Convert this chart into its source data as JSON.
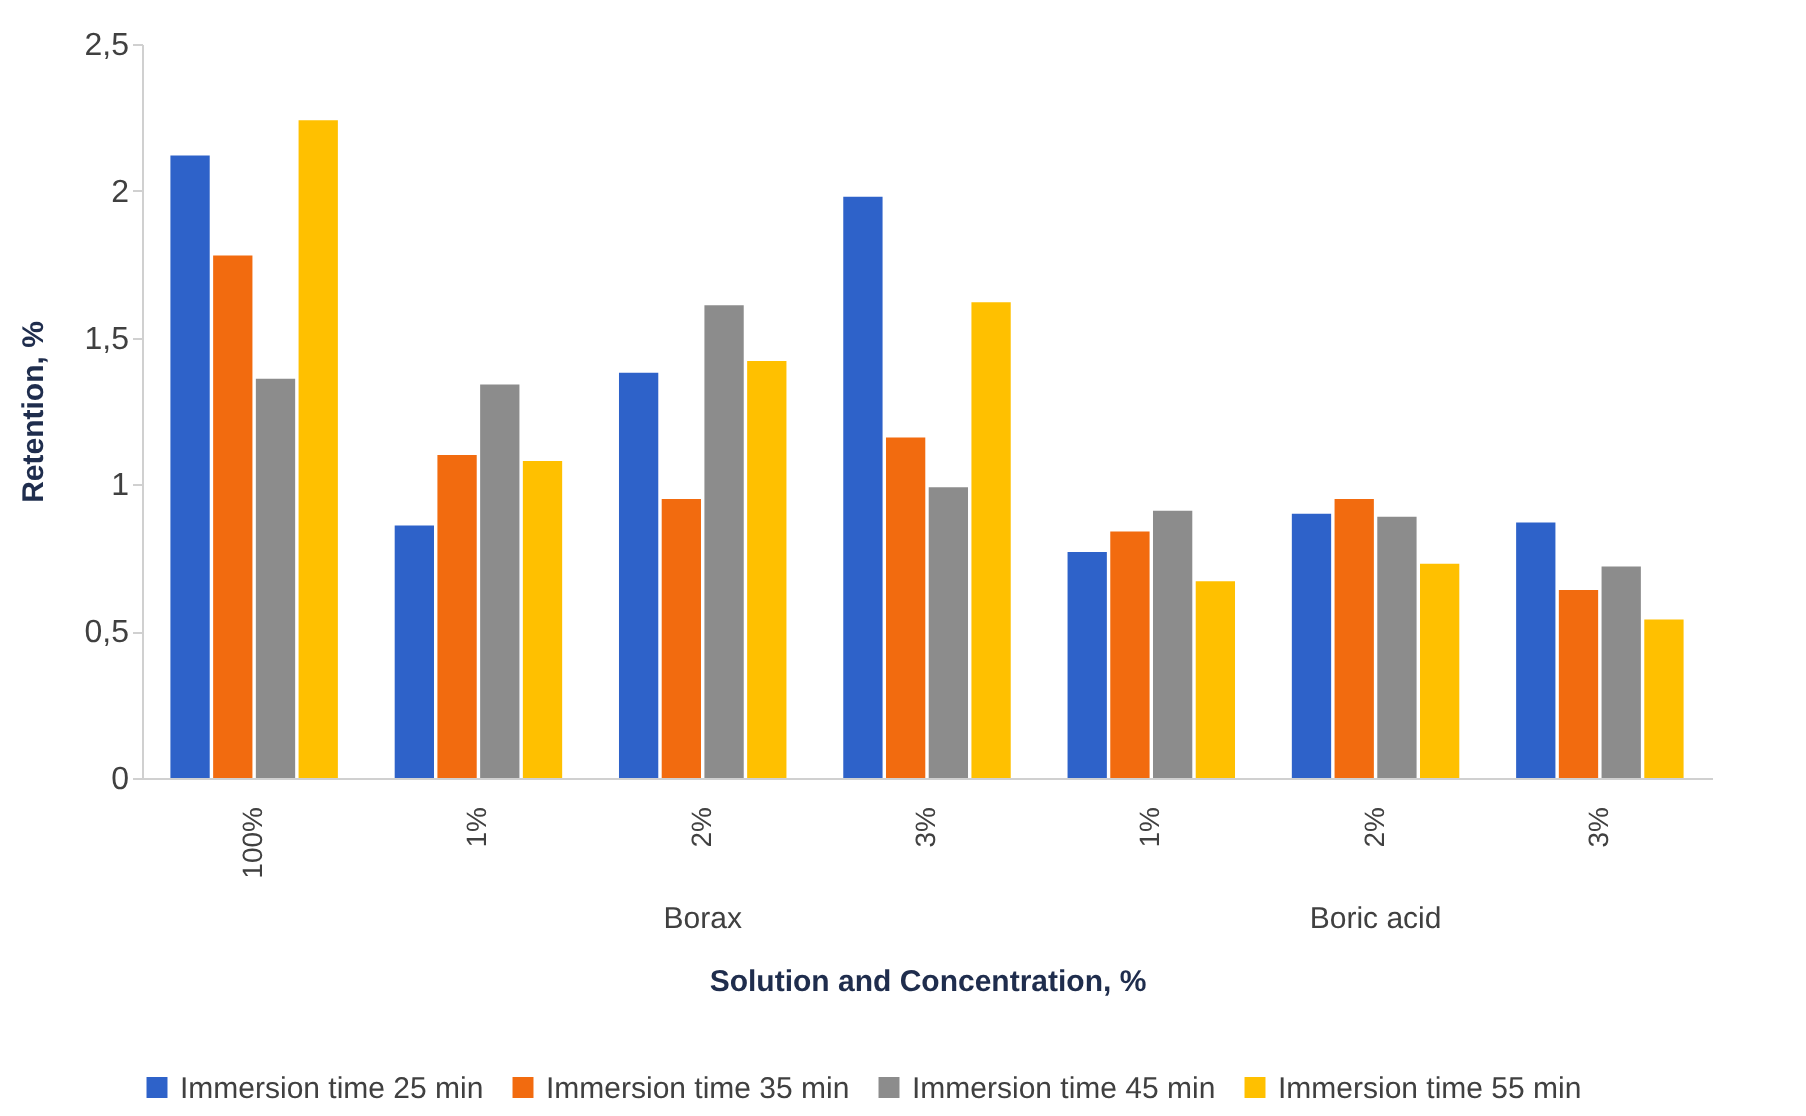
{
  "chart_data": {
    "type": "bar",
    "xlabel": "Solution and Concentration, %",
    "ylabel": "Retention, %",
    "categories": [
      "100%",
      "1%",
      "2%",
      "3%",
      "1%",
      "2%",
      "3%"
    ],
    "annotations": [
      "Borax",
      "Boric acid"
    ],
    "series": [
      {
        "name": "Immersion time 25 min",
        "color": "#2e62c9",
        "values": [
          2.12,
          0.86,
          1.38,
          1.98,
          0.77,
          0.9,
          0.87
        ]
      },
      {
        "name": "Immersion time 35 min",
        "color": "#f26b0f",
        "values": [
          1.78,
          1.1,
          0.95,
          1.16,
          0.84,
          0.95,
          0.64
        ]
      },
      {
        "name": "Immersion time 45 min",
        "color": "#8c8c8c",
        "values": [
          1.36,
          1.34,
          1.61,
          0.99,
          0.91,
          0.89,
          0.72
        ]
      },
      {
        "name": "Immersion time 55 min",
        "color": "#ffc000",
        "values": [
          2.24,
          1.08,
          1.42,
          1.62,
          0.67,
          0.73,
          0.54
        ]
      }
    ],
    "ylim": [
      0,
      2.5
    ],
    "yticks": [
      0,
      {
        "value": 0.5,
        "label": "0,5"
      },
      1,
      {
        "value": 1.5,
        "label": "1,5"
      },
      2,
      {
        "value": 2.5,
        "label": "2,5"
      }
    ],
    "grid": false,
    "legend": "bottom"
  }
}
